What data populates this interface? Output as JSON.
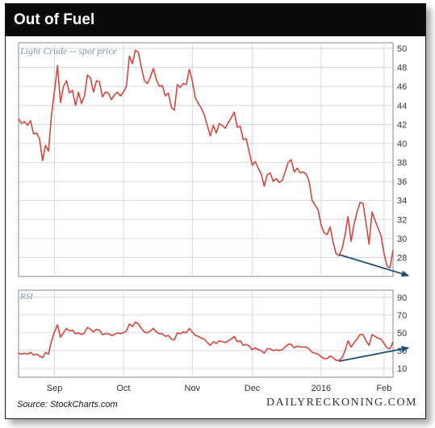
{
  "header": {
    "title": "Out of Fuel"
  },
  "footer": {
    "source": "Source: StockCharts.com",
    "brand": "DAILYRECKONING.COM"
  },
  "colors": {
    "line": "#d9453a",
    "arrow": "#1d4e73",
    "grid": "#c9d3da",
    "label": "#7a9bb0",
    "text": "#333333"
  },
  "chart_data": [
    {
      "type": "line",
      "title": "Light Crude -- spot price",
      "ylim": [
        26,
        50.6
      ],
      "yticks": [
        28,
        30,
        32,
        34,
        36,
        38,
        40,
        42,
        44,
        46,
        48,
        50
      ],
      "months": [
        {
          "label": "Sep",
          "t": 12
        },
        {
          "label": "Oct",
          "t": 35
        },
        {
          "label": "Nov",
          "t": 58
        },
        {
          "label": "Dec",
          "t": 78
        },
        {
          "label": "2016",
          "t": 101
        },
        {
          "label": "Feb",
          "t": 122
        }
      ],
      "series": [
        {
          "values": [
            42.6,
            42.1,
            42.3,
            41.9,
            42.4,
            41.0,
            41.1,
            40.5,
            38.2,
            39.8,
            39.2,
            43.0,
            45.5,
            48.2,
            44.3,
            46.0,
            46.6,
            45.3,
            45.6,
            44.0,
            45.4,
            44.2,
            45.0,
            47.2,
            46.9,
            45.4,
            46.6,
            46.5,
            44.9,
            45.4,
            45.3,
            44.6,
            45.1,
            45.4,
            45.0,
            45.4,
            46.0,
            49.2,
            48.4,
            49.8,
            49.6,
            48.0,
            46.6,
            46.3,
            47.0,
            47.9,
            46.7,
            46.0,
            46.1,
            45.0,
            45.3,
            43.8,
            43.5,
            46.2,
            45.9,
            46.3,
            46.2,
            47.8,
            46.6,
            44.8,
            44.2,
            43.7,
            43.0,
            41.9,
            40.8,
            41.9,
            41.1,
            42.1,
            41.9,
            41.6,
            42.2,
            42.7,
            43.3,
            41.7,
            41.8,
            40.4,
            40.5,
            39.1,
            37.7,
            38.1,
            37.4,
            36.8,
            35.5,
            36.7,
            36.9,
            36.0,
            36.3,
            35.9,
            36.1,
            37.0,
            38.0,
            38.3,
            37.0,
            37.4,
            36.9,
            37.0,
            36.8,
            36.0,
            34.0,
            33.5,
            33.0,
            31.4,
            30.6,
            30.4,
            31.2,
            29.6,
            28.4,
            28.2,
            28.9,
            30.4,
            32.3,
            29.7,
            31.5,
            32.8,
            33.8,
            33.7,
            31.6,
            29.4,
            32.8,
            31.9,
            31.1,
            30.3,
            28.4,
            27.1,
            26.9,
            28.8
          ],
          "annotation": {
            "type": "arrow",
            "from": [
              107,
              28.3
            ],
            "to": [
              130,
              26.1
            ]
          }
        }
      ]
    },
    {
      "type": "line",
      "title": "RSI",
      "ylim": [
        0,
        98
      ],
      "yticks": [
        10,
        30,
        50,
        70,
        90
      ],
      "months": [
        {
          "label": "Sep",
          "t": 12
        },
        {
          "label": "Oct",
          "t": 35
        },
        {
          "label": "Nov",
          "t": 58
        },
        {
          "label": "Dec",
          "t": 78
        },
        {
          "label": "2016",
          "t": 101
        },
        {
          "label": "Feb",
          "t": 122
        }
      ],
      "series": [
        {
          "values": [
            27,
            26,
            27,
            26,
            28,
            25,
            26,
            24,
            22,
            28,
            26,
            41,
            51,
            59,
            45,
            50,
            55,
            52,
            53,
            49,
            50,
            48,
            50,
            56,
            54,
            51,
            54,
            53,
            48,
            49,
            49,
            47,
            48,
            50,
            49,
            50,
            52,
            60,
            57,
            62,
            60,
            55,
            51,
            50,
            52,
            55,
            51,
            49,
            49,
            46,
            47,
            43,
            42,
            50,
            49,
            51,
            50,
            55,
            51,
            47,
            46,
            44,
            43,
            39,
            36,
            40,
            38,
            41,
            40,
            39,
            41,
            43,
            46,
            40,
            41,
            36,
            37,
            35,
            31,
            33,
            31,
            30,
            27,
            32,
            32,
            30,
            31,
            30,
            31,
            34,
            37,
            37,
            33,
            35,
            34,
            34,
            34,
            32,
            28,
            27,
            26,
            23,
            21,
            21,
            24,
            22,
            19,
            19,
            22,
            30,
            41,
            34,
            39,
            43,
            48,
            48,
            41,
            36,
            48,
            46,
            44,
            43,
            38,
            33,
            32,
            40
          ],
          "annotation": {
            "type": "arrow",
            "from": [
              107,
              18
            ],
            "to": [
              130,
              33
            ]
          }
        }
      ]
    }
  ]
}
